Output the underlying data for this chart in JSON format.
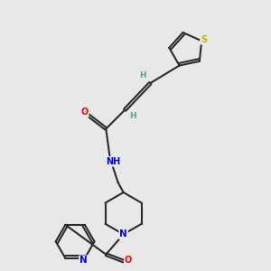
{
  "bg_color": "#e8e8e8",
  "bond_color": "#2c2c2c",
  "atom_colors": {
    "N": "#0000ff",
    "O": "#ff0000",
    "S": "#b8b800",
    "C": "#2c2c2c",
    "H": "#5a9a9a"
  }
}
